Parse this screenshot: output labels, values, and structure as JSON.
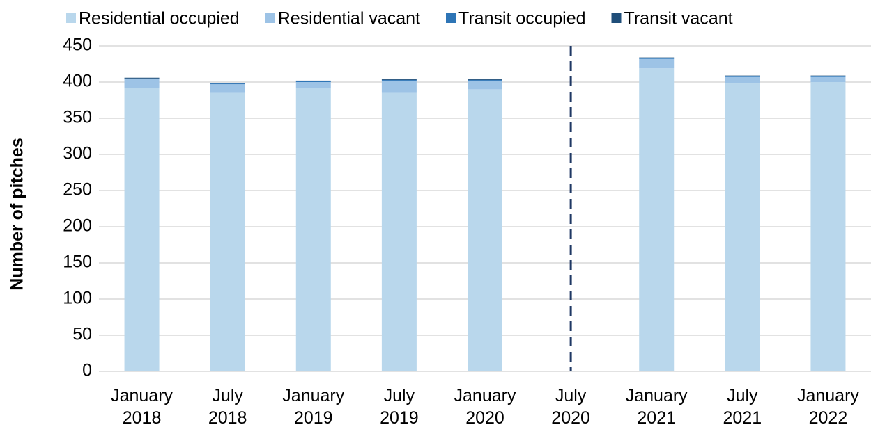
{
  "chart_data": {
    "type": "stacked_bar",
    "y_label": "Number of pitches",
    "categories": [
      "January 2018",
      "July 2018",
      "January 2019",
      "July 2019",
      "January 2020",
      "July 2020",
      "January 2021",
      "July 2021",
      "January 2022"
    ],
    "series": [
      {
        "name": "Residential occupied",
        "color": "#b9d7ec",
        "values": [
          392,
          385,
          392,
          385,
          390,
          null,
          419,
          398,
          400
        ]
      },
      {
        "name": "Residential vacant",
        "color": "#9dc3e6",
        "values": [
          12,
          12,
          8,
          17,
          12,
          null,
          13,
          9,
          7
        ]
      },
      {
        "name": "Transit occupied",
        "color": "#2e75b6",
        "values": [
          1,
          1,
          1,
          1,
          1,
          null,
          1,
          1,
          1
        ]
      },
      {
        "name": "Transit vacant",
        "color": "#1f4e79",
        "values": [
          1,
          1,
          1,
          1,
          1,
          null,
          1,
          1,
          1
        ]
      }
    ],
    "ylim": [
      0,
      450
    ],
    "yticks": [
      0,
      50,
      100,
      150,
      200,
      250,
      300,
      350,
      400,
      450
    ],
    "grid": true,
    "legend": "top"
  }
}
